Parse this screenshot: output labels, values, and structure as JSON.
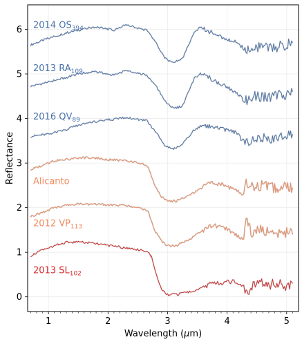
{
  "chart_data": {
    "type": "line",
    "title": "",
    "xlabel": "Wavelength (μm)",
    "ylabel": "Reflectance",
    "xlim": [
      0.65,
      5.2
    ],
    "ylim": [
      -0.33,
      6.55
    ],
    "x_ticks": [
      1,
      2,
      3,
      4,
      5
    ],
    "y_ticks": [
      0,
      1,
      2,
      3,
      4,
      5,
      6
    ],
    "grid": true,
    "legend": "inline labels at left",
    "series": [
      {
        "name": "2014 OS",
        "subscript": "394",
        "color": "#4a72aa",
        "x": [
          0.7,
          1.0,
          1.3,
          1.5,
          1.75,
          1.95,
          2.1,
          2.3,
          2.5,
          2.65,
          2.8,
          2.95,
          3.1,
          3.25,
          3.45,
          3.55,
          3.7,
          3.85,
          4.0,
          4.15,
          4.3,
          4.45,
          4.6,
          4.8,
          5.0,
          5.1
        ],
        "y": [
          5.65,
          5.8,
          5.92,
          5.98,
          6.05,
          6.02,
          5.98,
          6.1,
          6.03,
          5.98,
          5.72,
          5.35,
          5.25,
          5.35,
          5.92,
          6.05,
          5.95,
          5.86,
          5.78,
          5.7,
          5.55,
          5.6,
          5.58,
          5.6,
          5.65,
          5.7
        ]
      },
      {
        "name": "2013 RA",
        "subscript": "109",
        "color": "#4a72aa",
        "x": [
          0.7,
          1.0,
          1.3,
          1.5,
          1.75,
          1.95,
          2.1,
          2.3,
          2.5,
          2.65,
          2.8,
          2.95,
          3.1,
          3.25,
          3.45,
          3.55,
          3.7,
          3.85,
          4.0,
          4.15,
          4.3,
          4.45,
          4.6,
          4.8,
          5.0,
          5.1
        ],
        "y": [
          4.72,
          4.82,
          4.92,
          5.0,
          5.05,
          5.02,
          4.97,
          5.07,
          5.02,
          4.97,
          4.75,
          4.4,
          4.22,
          4.28,
          4.9,
          5.0,
          4.92,
          4.8,
          4.7,
          4.6,
          4.38,
          4.5,
          4.48,
          4.5,
          4.55,
          4.6
        ]
      },
      {
        "name": "2016 QV",
        "subscript": "89",
        "color": "#4a72aa",
        "x": [
          0.7,
          1.0,
          1.3,
          1.5,
          1.75,
          1.95,
          2.1,
          2.3,
          2.5,
          2.65,
          2.8,
          2.95,
          3.1,
          3.25,
          3.45,
          3.55,
          3.7,
          3.85,
          4.0,
          4.15,
          4.3,
          4.45,
          4.6,
          4.8,
          5.0,
          5.1
        ],
        "y": [
          3.6,
          3.65,
          3.75,
          3.85,
          3.92,
          3.97,
          3.98,
          4.02,
          3.98,
          3.95,
          3.7,
          3.4,
          3.32,
          3.42,
          3.75,
          3.82,
          3.83,
          3.8,
          3.72,
          3.68,
          3.45,
          3.55,
          3.55,
          3.58,
          3.62,
          3.65
        ]
      },
      {
        "name": "Alicanto",
        "color": "#f08c60",
        "x": [
          0.7,
          0.9,
          1.1,
          1.3,
          1.5,
          1.75,
          2.0,
          2.3,
          2.55,
          2.68,
          2.73,
          2.8,
          2.9,
          3.0,
          3.15,
          3.35,
          3.55,
          3.75,
          3.95,
          4.15,
          4.28,
          4.32,
          4.4,
          4.6,
          4.8,
          5.0,
          5.1
        ],
        "y": [
          2.85,
          2.95,
          3.05,
          3.08,
          3.12,
          3.12,
          3.08,
          3.05,
          3.0,
          2.9,
          2.7,
          2.45,
          2.25,
          2.15,
          2.15,
          2.28,
          2.42,
          2.58,
          2.5,
          2.4,
          2.3,
          2.6,
          2.45,
          2.5,
          2.45,
          2.5,
          2.45
        ]
      },
      {
        "name": "2012 VP",
        "subscript": "113",
        "color": "#f08c60",
        "x": [
          0.7,
          0.9,
          1.1,
          1.3,
          1.5,
          1.75,
          2.0,
          2.3,
          2.55,
          2.68,
          2.73,
          2.8,
          2.9,
          3.0,
          3.15,
          3.35,
          3.55,
          3.75,
          3.95,
          4.15,
          4.28,
          4.32,
          4.4,
          4.6,
          4.8,
          5.0,
          5.1
        ],
        "y": [
          1.8,
          1.9,
          2.0,
          2.05,
          2.08,
          2.08,
          2.06,
          2.05,
          2.0,
          1.9,
          1.7,
          1.45,
          1.25,
          1.15,
          1.15,
          1.28,
          1.45,
          1.6,
          1.55,
          1.4,
          1.25,
          1.75,
          1.45,
          1.5,
          1.42,
          1.45,
          1.4
        ]
      },
      {
        "name": "2013 SL",
        "subscript": "102",
        "color": "#d62a2a",
        "x": [
          0.7,
          0.9,
          1.1,
          1.3,
          1.5,
          1.75,
          2.0,
          2.3,
          2.55,
          2.68,
          2.73,
          2.8,
          2.9,
          3.0,
          3.15,
          3.35,
          3.55,
          3.75,
          3.95,
          4.15,
          4.28,
          4.32,
          4.4,
          4.6,
          4.8,
          5.0,
          5.1
        ],
        "y": [
          0.92,
          1.05,
          1.15,
          1.22,
          1.23,
          1.2,
          1.15,
          1.1,
          1.05,
          1.0,
          0.9,
          0.55,
          0.15,
          0.05,
          0.05,
          0.1,
          0.18,
          0.3,
          0.32,
          0.35,
          0.25,
          0.1,
          0.22,
          0.3,
          0.28,
          0.25,
          0.3
        ]
      }
    ]
  }
}
